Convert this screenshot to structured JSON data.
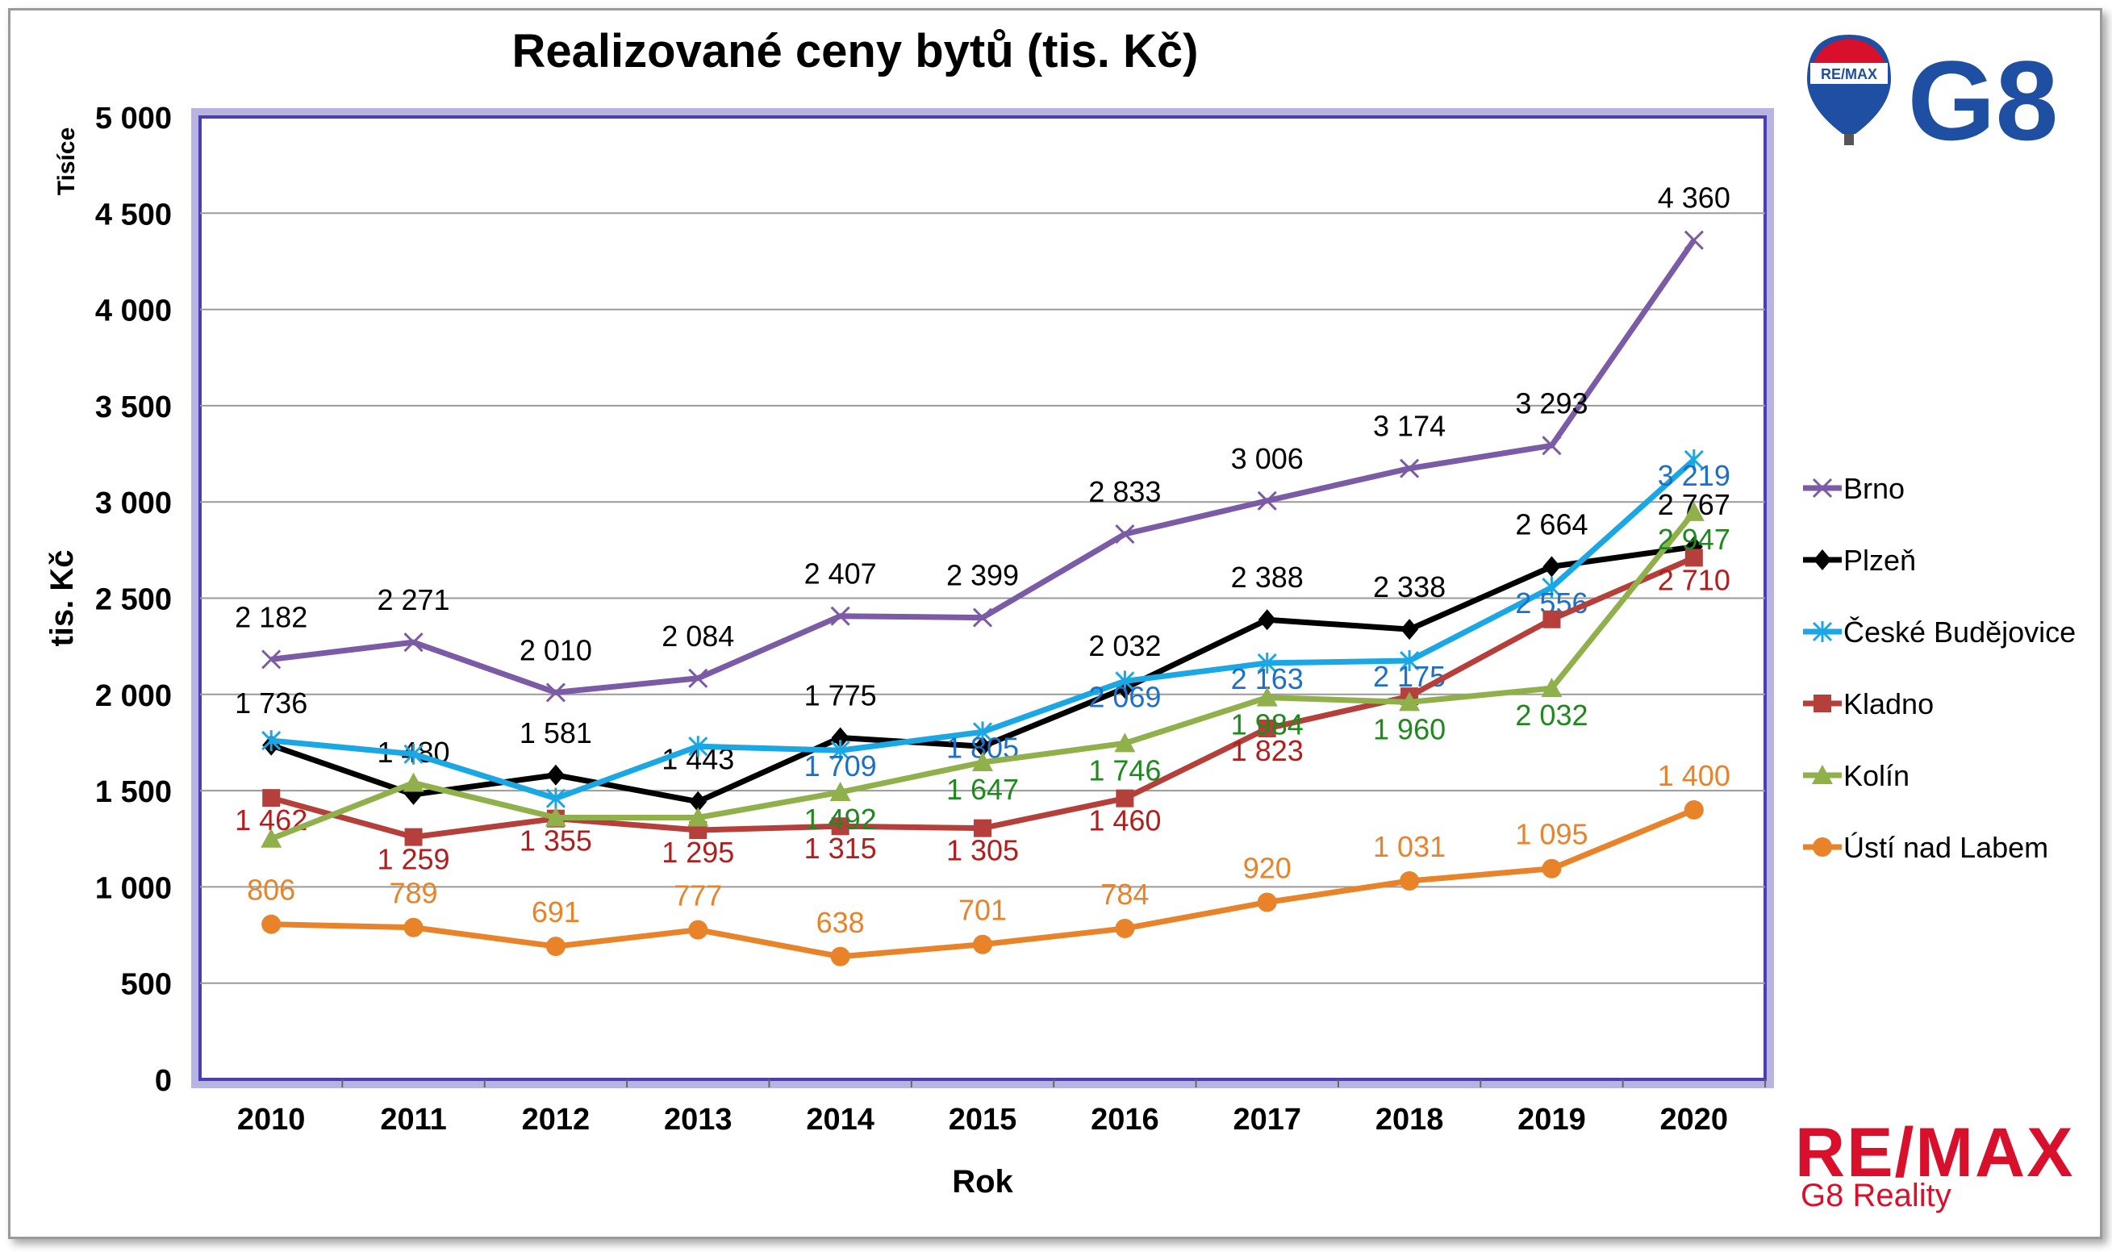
{
  "chart_data": {
    "type": "line",
    "title": "Realizované ceny bytů (tis. Kč)",
    "xlabel": "Rok",
    "ylabel": "tis. Kč",
    "y_unit_label": "Tisíce",
    "categories": [
      "2010",
      "2011",
      "2012",
      "2013",
      "2014",
      "2015",
      "2016",
      "2017",
      "2018",
      "2019",
      "2020"
    ],
    "ylim": [
      0,
      5000
    ],
    "yticks": [
      0,
      500,
      1000,
      1500,
      2000,
      2500,
      3000,
      3500,
      4000,
      4500,
      5000
    ],
    "ytick_labels": [
      "0",
      "500",
      "1 000",
      "1 500",
      "2 000",
      "2 500",
      "3 000",
      "3 500",
      "4 000",
      "4 500",
      "5 000"
    ],
    "grid": true,
    "legend_position": "right",
    "series": [
      {
        "name": "Brno",
        "color": "#7b5aa6",
        "marker": "x",
        "label_color": "#000000",
        "values": [
          2182,
          2271,
          2010,
          2084,
          2407,
          2399,
          2833,
          3006,
          3174,
          3293,
          4360
        ],
        "labels": [
          "2 182",
          "2 271",
          "2 010",
          "2 084",
          "2 407",
          "2 399",
          "2 833",
          "3 006",
          "3 174",
          "3 293",
          "4 360"
        ]
      },
      {
        "name": "Plzeň",
        "color": "#000000",
        "marker": "diamond",
        "label_color": "#000000",
        "values": [
          1736,
          1480,
          1581,
          1443,
          1775,
          1730,
          2032,
          2388,
          2338,
          2664,
          2767
        ],
        "labels": [
          "1 736",
          "1 480",
          "1 581",
          "1 443",
          "1 775",
          "",
          "2 032",
          "2 388",
          "2 338",
          "2 664",
          "2 767"
        ]
      },
      {
        "name": "České Budějovice",
        "color": "#1aa7e4",
        "marker": "star",
        "label_color": "#1e6fc8",
        "values": [
          1760,
          1690,
          1460,
          1730,
          1709,
          1805,
          2069,
          2163,
          2175,
          2556,
          3219
        ],
        "labels": [
          "",
          "",
          "",
          "",
          "1 709",
          "1 805",
          "2 069",
          "2 163",
          "2 175",
          "2 556",
          "3 219"
        ]
      },
      {
        "name": "Kladno",
        "color": "#b5403b",
        "marker": "square",
        "label_color": "#b01e1e",
        "values": [
          1462,
          1259,
          1355,
          1295,
          1315,
          1305,
          1460,
          1823,
          1990,
          2390,
          2710
        ],
        "labels": [
          "1 462",
          "1 259",
          "1 355",
          "1 295",
          "1 315",
          "1 305",
          "1 460",
          "1 823",
          "",
          "",
          "2 710"
        ]
      },
      {
        "name": "Kolín",
        "color": "#8fb04a",
        "marker": "triangle",
        "label_color": "#1e8a1e",
        "values": [
          1250,
          1540,
          1360,
          1360,
          1492,
          1647,
          1746,
          1984,
          1960,
          2032,
          2947
        ],
        "labels": [
          "",
          "",
          "",
          "",
          "1 492",
          "1 647",
          "1 746",
          "1 984",
          "1 960",
          "2 032",
          "2 947"
        ]
      },
      {
        "name": "Ústí nad Labem",
        "color": "#e8832a",
        "marker": "circle",
        "label_color": "#e8832a",
        "values": [
          806,
          789,
          691,
          777,
          638,
          701,
          784,
          920,
          1031,
          1095,
          1400
        ],
        "labels": [
          "806",
          "789",
          "691",
          "777",
          "638",
          "701",
          "784",
          "920",
          "1 031",
          "1 095",
          "1 400"
        ]
      }
    ]
  },
  "branding": {
    "logo_badge_text": "RE/MAX",
    "logo_g8_text": "G8",
    "remax_text": "RE/MAX",
    "g8_reality_text": "G8 Reality"
  }
}
